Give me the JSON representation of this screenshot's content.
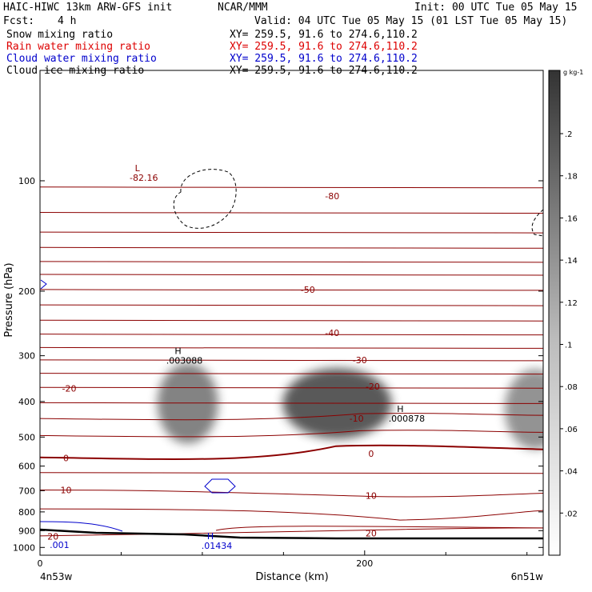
{
  "header": {
    "model": "HAIC-HIWC 13km ARW-GFS init",
    "center": "NCAR/MMM",
    "init": "Init: 00 UTC Tue 05 May 15",
    "fcst_label": "Fcst:",
    "fcst_value": "4 h",
    "valid": "Valid: 04 UTC Tue 05 May 15 (01 LST Tue 05 May 15)",
    "fields": [
      {
        "name": "Snow mixing ratio",
        "xy": "XY= 259.5, 91.6 to 274.6,110.2",
        "color": "#000000"
      },
      {
        "name": "Rain water mixing ratio",
        "xy": "XY= 259.5, 91.6 to 274.6,110.2",
        "color": "#dd0000"
      },
      {
        "name": "Cloud water mixing ratio",
        "xy": "XY= 259.5, 91.6 to 274.6,110.2",
        "color": "#0000cc"
      },
      {
        "name": "Cloud ice mixing ratio",
        "xy": "XY= 259.5, 91.6 to 274.6,110.2",
        "color": "#000000"
      }
    ]
  },
  "chart_data": {
    "type": "cross-section contour",
    "xlabel": "Distance (km)",
    "ylabel": "Pressure (hPa)",
    "xlim": [
      0,
      310
    ],
    "ylim": [
      1050,
      50
    ],
    "yscale": "log",
    "x_ticks": [
      0,
      200
    ],
    "y_ticks": [
      100,
      200,
      300,
      400,
      500,
      600,
      700,
      800,
      900,
      1000
    ],
    "x_end_labels": [
      "4n53w",
      "6n51w"
    ],
    "colorbar": {
      "unit": "g kg-1",
      "ticks": [
        ".02",
        ".04",
        ".06",
        ".08",
        ".1",
        ".12",
        ".14",
        ".16",
        ".18",
        ".2"
      ],
      "range": [
        0,
        0.23
      ]
    },
    "temperature_contours": {
      "color": "#8b0000",
      "unit": "C",
      "labels": [
        {
          "value": "-80",
          "x": 180,
          "p": 110
        },
        {
          "value": "-50",
          "x": 165,
          "p": 198
        },
        {
          "value": "-40",
          "x": 180,
          "p": 260
        },
        {
          "value": "-30",
          "x": 197,
          "p": 308
        },
        {
          "value": "-20",
          "x": 18,
          "p": 368
        },
        {
          "value": "-20",
          "x": 205,
          "p": 364
        },
        {
          "value": "-10",
          "x": 195,
          "p": 445
        },
        {
          "value": "0",
          "x": 16,
          "p": 570
        },
        {
          "value": "0",
          "x": 204,
          "p": 555
        },
        {
          "value": "10",
          "x": 16,
          "p": 697
        },
        {
          "value": "10",
          "x": 204,
          "p": 723
        },
        {
          "value": "20",
          "x": 8,
          "p": 932
        },
        {
          "value": "20",
          "x": 204,
          "p": 915
        }
      ]
    },
    "extrema": [
      {
        "type": "L",
        "value": "-82.16",
        "x": 60,
        "p": 95,
        "field": "temperature"
      },
      {
        "type": "H",
        "value": ".003088",
        "x": 85,
        "p": 300,
        "field": "cloud ice"
      },
      {
        "type": "H",
        "value": ".000878",
        "x": 222,
        "p": 432,
        "field": "cloud ice"
      },
      {
        "type": "H",
        "value": ".01434",
        "x": 105,
        "p": 960,
        "field": "cloud water"
      }
    ],
    "cloud_water_contour": {
      "value": ".001",
      "x": 12,
      "p": 983
    },
    "snow_maxima": [
      {
        "x": 183,
        "p": 405,
        "value": 0.2
      },
      {
        "x": 91,
        "p": 405,
        "value": 0.15
      },
      {
        "x": 305,
        "p": 420,
        "value": 0.13
      }
    ]
  }
}
